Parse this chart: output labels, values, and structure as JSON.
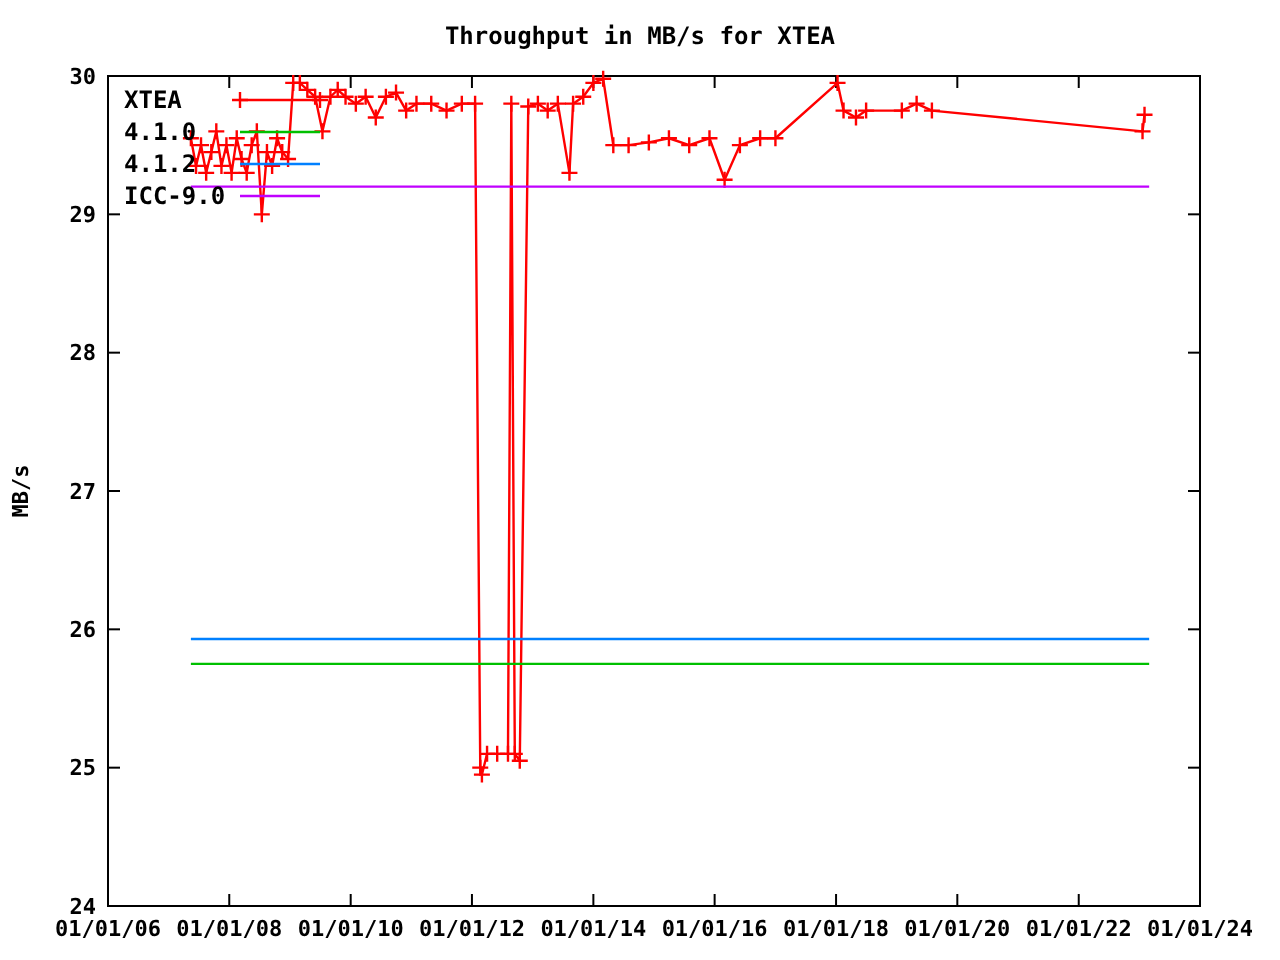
{
  "chart_data": {
    "type": "line",
    "title": "Throughput in MB/s for XTEA",
    "ylabel": "MB/s",
    "xlim": [
      "2006-01-01",
      "2024-01-01"
    ],
    "xticks": [
      {
        "value": "2006-01-01",
        "label": "01/01/06"
      },
      {
        "value": "2008-01-01",
        "label": "01/01/08"
      },
      {
        "value": "2010-01-01",
        "label": "01/01/10"
      },
      {
        "value": "2012-01-01",
        "label": "01/01/12"
      },
      {
        "value": "2014-01-01",
        "label": "01/01/14"
      },
      {
        "value": "2016-01-01",
        "label": "01/01/16"
      },
      {
        "value": "2018-01-01",
        "label": "01/01/18"
      },
      {
        "value": "2020-01-01",
        "label": "01/01/20"
      },
      {
        "value": "2022-01-01",
        "label": "01/01/22"
      },
      {
        "value": "2024-01-01",
        "label": "01/01/24"
      }
    ],
    "ylim": [
      24,
      30
    ],
    "yticks": [
      24,
      25,
      26,
      27,
      28,
      29,
      30
    ],
    "grid": false,
    "legend": "top left",
    "series": [
      {
        "name": "XTEA",
        "color": "#ff0000",
        "marker": "cross",
        "x": [
          "2007-05-15",
          "2007-06-15",
          "2007-07-15",
          "2007-08-15",
          "2007-09-15",
          "2007-10-15",
          "2007-11-15",
          "2007-12-15",
          "2008-01-15",
          "2008-02-15",
          "2008-03-15",
          "2008-04-15",
          "2008-05-15",
          "2008-06-15",
          "2008-07-15",
          "2008-08-15",
          "2008-09-15",
          "2008-10-15",
          "2008-11-15",
          "2008-12-20",
          "2009-01-20",
          "2009-03-01",
          "2009-04-15",
          "2009-06-01",
          "2009-07-15",
          "2009-09-01",
          "2009-10-15",
          "2009-12-01",
          "2010-02-01",
          "2010-04-01",
          "2010-06-01",
          "2010-08-01",
          "2010-10-01",
          "2010-12-01",
          "2011-02-01",
          "2011-05-01",
          "2011-08-01",
          "2011-11-01",
          "2012-01-20",
          "2012-02-20",
          "2012-03-01",
          "2012-04-01",
          "2012-06-01",
          "2012-08-05",
          "2012-08-25",
          "2012-09-15",
          "2012-10-15",
          "2012-12-05",
          "2013-02-01",
          "2013-04-01",
          "2013-06-01",
          "2013-08-10",
          "2013-09-01",
          "2013-11-01",
          "2014-01-01",
          "2014-03-01",
          "2014-05-01",
          "2014-08-01",
          "2014-12-01",
          "2015-04-01",
          "2015-08-01",
          "2015-12-01",
          "2016-03-01",
          "2016-06-01",
          "2016-10-01",
          "2017-01-01",
          "2018-01-10",
          "2018-02-15",
          "2018-05-01",
          "2018-07-01",
          "2019-02-01",
          "2019-05-01",
          "2019-08-01",
          "2023-01-20",
          "2023-02-01"
        ],
        "values": [
          29.55,
          29.35,
          29.5,
          29.3,
          29.45,
          29.6,
          29.35,
          29.5,
          29.3,
          29.55,
          29.4,
          29.3,
          29.5,
          29.6,
          29.0,
          29.45,
          29.35,
          29.55,
          29.45,
          29.4,
          29.95,
          29.95,
          29.9,
          29.85,
          29.6,
          29.85,
          29.9,
          29.85,
          29.8,
          29.85,
          29.7,
          29.85,
          29.88,
          29.75,
          29.8,
          29.8,
          29.75,
          29.8,
          29.8,
          25.0,
          24.95,
          25.1,
          25.1,
          25.1,
          29.8,
          25.1,
          25.05,
          29.78,
          29.8,
          29.75,
          29.8,
          29.3,
          29.8,
          29.85,
          29.95,
          29.98,
          29.5,
          29.5,
          29.52,
          29.55,
          29.5,
          29.55,
          29.25,
          29.5,
          29.55,
          29.55,
          29.95,
          29.75,
          29.7,
          29.75,
          29.75,
          29.8,
          29.75,
          29.6,
          29.72
        ]
      },
      {
        "name": "4.1.0",
        "color": "#00c000",
        "x": [
          "2007-05-15",
          "2023-03-01"
        ],
        "values": [
          25.75,
          25.75
        ]
      },
      {
        "name": "4.1.2",
        "color": "#0080ff",
        "x": [
          "2007-05-15",
          "2023-03-01"
        ],
        "values": [
          25.93,
          25.93
        ]
      },
      {
        "name": "ICC-9.0",
        "color": "#c000ff",
        "x": [
          "2007-05-15",
          "2023-03-01"
        ],
        "values": [
          29.2,
          29.2
        ]
      }
    ]
  }
}
